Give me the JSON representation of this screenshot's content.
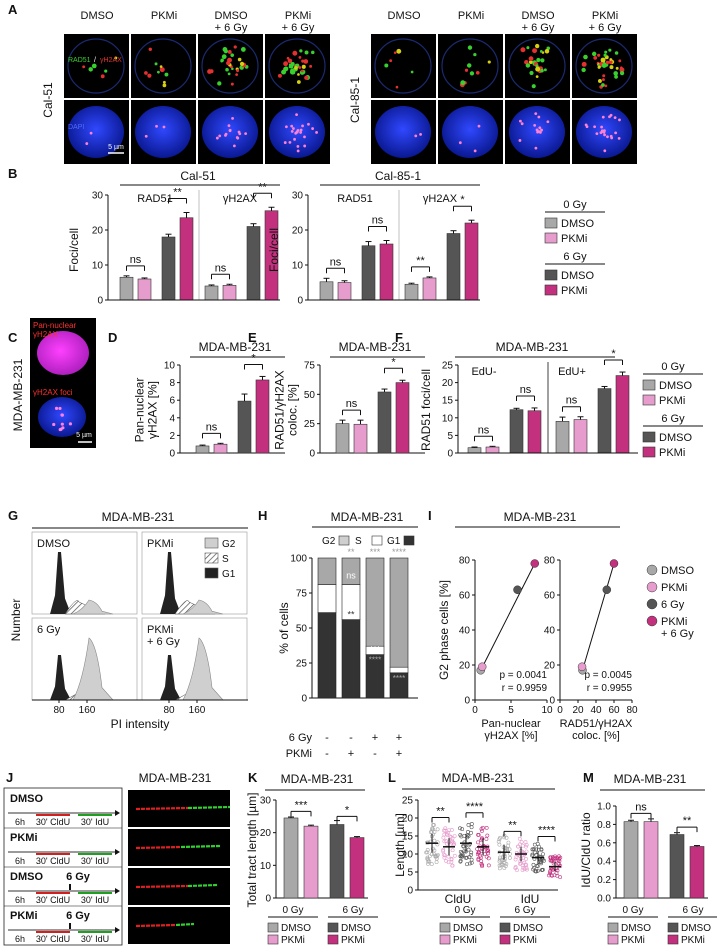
{
  "colors": {
    "dmso0": "#a8a8a8",
    "pkmi0": "#e69ccc",
    "dmso6": "#555555",
    "pkmi6": "#c2307e",
    "rad51": "#37d02e",
    "gh2ax": "#e43030",
    "dapi": "#1f3fe0"
  },
  "A": {
    "letter": "A",
    "conditions": [
      "DMSO",
      "PKMi",
      "DMSO\n+ 6 Gy",
      "PKMi\n+ 6 Gy"
    ],
    "cell_lines": [
      "Cal-51",
      "Cal-85-1"
    ],
    "legend_rad51": "RAD51",
    "legend_sep": " / ",
    "legend_gh2ax": "γH2AX",
    "legend_dapi": "DAPI",
    "scale": "5 µm"
  },
  "B": {
    "letter": "B",
    "ylabel": "Foci/cell",
    "legend": {
      "g0": "0 Gy",
      "g6": "6 Gy",
      "dmso": "DMSO",
      "pkmi": "PKMi"
    },
    "panels": [
      {
        "title": "Cal-51",
        "subs": [
          {
            "label": "RAD51",
            "values": [
              6.5,
              6.0,
              18.0,
              23.5
            ],
            "err": [
              0.4,
              0.3,
              0.8,
              1.5
            ],
            "sig": [
              "ns",
              "**"
            ]
          },
          {
            "label": "γH2AX",
            "values": [
              4.0,
              4.2,
              21.0,
              25.5
            ],
            "err": [
              0.3,
              0.3,
              0.8,
              1.0
            ],
            "sig": [
              "ns",
              "**"
            ]
          }
        ]
      },
      {
        "title": "Cal-85-1",
        "subs": [
          {
            "label": "RAD51",
            "values": [
              5.2,
              5.0,
              15.5,
              16.0
            ],
            "err": [
              1.0,
              0.5,
              1.2,
              1.0
            ],
            "sig": [
              "ns",
              "ns"
            ]
          },
          {
            "label": "γH2AX",
            "values": [
              4.5,
              6.3,
              19.0,
              22.0
            ],
            "err": [
              0.3,
              0.3,
              0.8,
              0.8
            ],
            "sig": [
              "**",
              "*"
            ]
          }
        ]
      }
    ],
    "ylim": [
      0,
      30
    ],
    "ticks": [
      0,
      10,
      20,
      30
    ]
  },
  "C": {
    "letter": "C",
    "cell_line": "MDA-MB-231",
    "label1": "Pan-nuclear\nγH2AX",
    "label2": "γH2AX foci",
    "scale": "5 µm"
  },
  "D": {
    "letter": "D",
    "title": "MDA-MB-231",
    "ylabel": "Pan-nuclear\nγH2AX [%]",
    "values": [
      0.8,
      1.0,
      5.9,
      8.3
    ],
    "err": [
      0.1,
      0.1,
      0.8,
      0.4
    ],
    "sig": [
      "ns",
      "*"
    ],
    "ylim": [
      0,
      10
    ],
    "ticks": [
      0,
      2,
      4,
      6,
      8,
      10
    ]
  },
  "E": {
    "letter": "E",
    "title": "MDA-MB-231",
    "ylabel": "RAD51/γH2AX\ncoloc. [%]",
    "values": [
      25,
      24.5,
      52,
      60
    ],
    "err": [
      3,
      3.5,
      2.5,
      2
    ],
    "sig": [
      "ns",
      "*"
    ],
    "ylim": [
      0,
      75
    ],
    "ticks": [
      0,
      25,
      50,
      75
    ]
  },
  "F": {
    "letter": "F",
    "title": "MDA-MB-231",
    "ylabel": "RAD51 foci/cell",
    "subs": [
      {
        "label": "EdU-",
        "values": [
          1.5,
          1.7,
          12.3,
          12.0
        ],
        "err": [
          0.2,
          0.2,
          0.4,
          0.8
        ],
        "sig": [
          "ns",
          "ns"
        ]
      },
      {
        "label": "EdU+",
        "values": [
          9.0,
          9.5,
          18.3,
          22.0
        ],
        "err": [
          1.2,
          0.8,
          0.6,
          1.0
        ],
        "sig": [
          "ns",
          "*"
        ]
      }
    ],
    "ylim": [
      0,
      25
    ],
    "ticks": [
      0,
      5,
      10,
      15,
      20,
      25
    ],
    "legend": {
      "g0": "0 Gy",
      "g6": "6 Gy",
      "dmso": "DMSO",
      "pkmi": "PKMi"
    }
  },
  "G": {
    "letter": "G",
    "title": "MDA-MB-231",
    "ylabel": "Number",
    "xlabel": "PI intensity",
    "panels": [
      "DMSO",
      "PKMi",
      "6 Gy",
      "PKMi\n+ 6 Gy"
    ],
    "xticks": [
      "80",
      "160",
      "80",
      "160"
    ],
    "legend": [
      "G2",
      "S",
      "G1"
    ]
  },
  "H": {
    "letter": "H",
    "title": "MDA-MB-231",
    "ylabel": "% of cells",
    "ylim": [
      0,
      100
    ],
    "ticks": [
      0,
      25,
      50,
      75,
      100
    ],
    "legend": [
      "G2",
      "S",
      "G1"
    ],
    "stacks": [
      {
        "g1": 61,
        "s": 20,
        "g2": 19
      },
      {
        "g1": 56,
        "s": 25,
        "g2": 19
      },
      {
        "g1": 31,
        "s": 6,
        "g2": 63
      },
      {
        "g1": 18,
        "s": 4,
        "g2": 78
      }
    ],
    "sig_top": [
      "",
      "**",
      "***",
      "****"
    ],
    "sig_mid": [
      "",
      "ns",
      "",
      ""
    ],
    "sig_s": [
      "",
      "**",
      "***",
      ""
    ],
    "sig_g1": [
      "",
      "",
      "****",
      "****"
    ],
    "row_labels": [
      "6 Gy",
      "PKMi"
    ],
    "row6": [
      "-",
      "-",
      "+",
      "+"
    ],
    "rowP": [
      "-",
      "+",
      "-",
      "+"
    ]
  },
  "I": {
    "letter": "I",
    "title": "MDA-MB-231",
    "ylabel": "G2 phase cells [%]",
    "left": {
      "xlabel": "Pan-nuclear\nγH2AX [%]",
      "xticks": [
        0,
        5,
        10
      ],
      "points": [
        [
          0.8,
          17
        ],
        [
          1.0,
          19
        ],
        [
          5.9,
          63
        ],
        [
          8.3,
          78
        ]
      ],
      "p": "p = 0.0041",
      "r": "r = 0.9959"
    },
    "right": {
      "xlabel": "RAD51/γH2AX\ncoloc. [%]",
      "xticks": [
        0,
        20,
        40,
        60,
        80
      ],
      "points": [
        [
          25,
          17
        ],
        [
          24.5,
          19
        ],
        [
          52,
          63
        ],
        [
          60,
          78
        ]
      ],
      "p": "p = 0.0045",
      "r": "r = 0.9955"
    },
    "yticks": [
      0,
      20,
      40,
      60,
      80
    ],
    "legend": [
      "DMSO",
      "PKMi",
      "6 Gy",
      "PKMi\n+ 6 Gy"
    ]
  },
  "J": {
    "letter": "J",
    "title": "MDA-MB-231",
    "rows": [
      {
        "name": "DMSO",
        "irr": ""
      },
      {
        "name": "PKMi",
        "irr": ""
      },
      {
        "name": "DMSO",
        "irr": "6 Gy"
      },
      {
        "name": "PKMi",
        "irr": "6 Gy"
      }
    ],
    "t6h": "6h",
    "cldu": "30' CldU",
    "idu": "30' IdU"
  },
  "K": {
    "letter": "K",
    "title": "MDA-MB-231",
    "ylabel": "Total tract length [µm]",
    "values": [
      24.5,
      22.0,
      22.5,
      18.5
    ],
    "err": [
      0.3,
      0.3,
      1.2,
      0.3
    ],
    "sig": [
      "***",
      "*"
    ],
    "ylim": [
      0,
      30
    ],
    "ticks": [
      0,
      10,
      20,
      30
    ],
    "legend": {
      "g0": "0 Gy",
      "g6": "6 Gy",
      "dmso": "DMSO",
      "pkmi": "PKMi"
    }
  },
  "L": {
    "letter": "L",
    "title": "MDA-MB-231",
    "ylabel": "Length [µm]",
    "ylim": [
      0,
      25
    ],
    "ticks": [
      0,
      5,
      10,
      15,
      20,
      25
    ],
    "groups": [
      "CldU",
      "IdU"
    ],
    "medians": [
      [
        13,
        12,
        13,
        12
      ],
      [
        10.5,
        10,
        9,
        6.5
      ]
    ],
    "sig": [
      [
        "**",
        "****"
      ],
      [
        "**",
        "****"
      ]
    ],
    "legend": {
      "g0": "0 Gy",
      "g6": "6 Gy",
      "dmso": "DMSO",
      "pkmi": "PKMi"
    }
  },
  "M": {
    "letter": "M",
    "title": "MDA-MB-231",
    "ylabel": "IdU/CldU ratio",
    "values": [
      0.83,
      0.83,
      0.69,
      0.56
    ],
    "err": [
      0.015,
      0.03,
      0.02,
      0.01
    ],
    "sig": [
      "ns",
      "**"
    ],
    "ylim": [
      0,
      1.0
    ],
    "ticks": [
      "0.0",
      "0.2",
      "0.4",
      "0.6",
      "0.8",
      "1.0"
    ],
    "legend": {
      "g0": "0 Gy",
      "g6": "6 Gy",
      "dmso": "DMSO",
      "pkmi": "PKMi"
    }
  }
}
